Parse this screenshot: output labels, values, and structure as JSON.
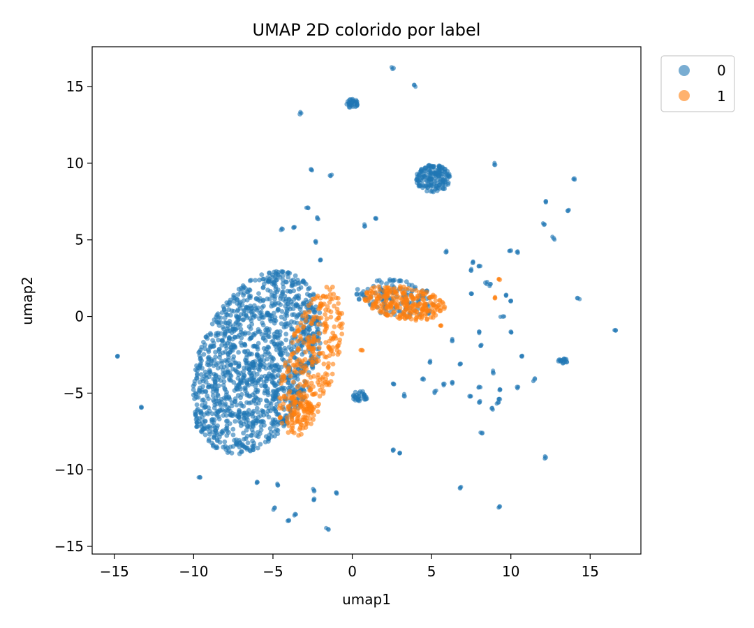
{
  "chart_data": {
    "type": "scatter",
    "title": "UMAP 2D colorido por label",
    "xlabel": "umap1",
    "ylabel": "umap2",
    "xlim": [
      -16.4,
      18.2
    ],
    "ylim": [
      -15.5,
      17.6
    ],
    "xticks": [
      -15,
      -10,
      -5,
      0,
      5,
      10,
      15
    ],
    "yticks": [
      -15,
      -10,
      -5,
      0,
      5,
      10,
      15
    ],
    "xtick_labels": [
      "−15",
      "−10",
      "−5",
      "0",
      "5",
      "10",
      "15"
    ],
    "ytick_labels": [
      "−15",
      "−10",
      "−5",
      "0",
      "5",
      "10",
      "15"
    ],
    "grid": false,
    "legend_position": "outside-top-right",
    "series": [
      {
        "name": "0",
        "color": "#1f77b4",
        "clusters": [
          {
            "center": [
              -6.0,
              -3.0
            ],
            "radius": [
              3.7,
              6.3
            ],
            "rotation": -20,
            "count": 1400
          },
          {
            "center": [
              5.1,
              9.0
            ],
            "radius": [
              1.1,
              0.9
            ],
            "rotation": 0,
            "count": 160
          },
          {
            "center": [
              0.0,
              13.9
            ],
            "radius": [
              0.35,
              0.3
            ],
            "rotation": 0,
            "count": 30
          },
          {
            "center": [
              2.8,
              1.2
            ],
            "radius": [
              2.6,
              1.2
            ],
            "rotation": -10,
            "count": 130
          },
          {
            "center": [
              0.5,
              -5.2
            ],
            "radius": [
              0.5,
              0.4
            ],
            "rotation": 0,
            "count": 30
          },
          {
            "center": [
              13.3,
              -2.9
            ],
            "radius": [
              0.3,
              0.15
            ],
            "rotation": 0,
            "count": 15
          }
        ],
        "points": [
          [
            2.6,
            16.2
          ],
          [
            3.9,
            15.1
          ],
          [
            -3.3,
            13.2
          ],
          [
            -2.6,
            9.6
          ],
          [
            -1.4,
            9.2
          ],
          [
            9.0,
            9.9
          ],
          [
            14.0,
            9.0
          ],
          [
            -2.8,
            7.1
          ],
          [
            12.2,
            7.5
          ],
          [
            13.6,
            6.9
          ],
          [
            1.5,
            6.4
          ],
          [
            -2.2,
            6.4
          ],
          [
            -4.4,
            5.7
          ],
          [
            -3.7,
            5.8
          ],
          [
            0.8,
            5.9
          ],
          [
            12.1,
            6.0
          ],
          [
            12.7,
            5.1
          ],
          [
            -2.3,
            4.9
          ],
          [
            5.9,
            4.2
          ],
          [
            10.0,
            4.3
          ],
          [
            10.4,
            4.2
          ],
          [
            -2.0,
            3.7
          ],
          [
            7.6,
            3.5
          ],
          [
            8.0,
            3.3
          ],
          [
            7.5,
            3.0
          ],
          [
            8.4,
            2.2
          ],
          [
            8.7,
            2.1
          ],
          [
            9.7,
            1.4
          ],
          [
            10.0,
            1.0
          ],
          [
            14.2,
            1.2
          ],
          [
            7.5,
            1.5
          ],
          [
            9.5,
            0.0
          ],
          [
            16.6,
            -0.9
          ],
          [
            8.0,
            -1.0
          ],
          [
            10.0,
            -1.0
          ],
          [
            6.3,
            -1.6
          ],
          [
            8.1,
            -1.9
          ],
          [
            10.7,
            -2.6
          ],
          [
            -14.8,
            -2.6
          ],
          [
            4.9,
            -3.0
          ],
          [
            6.8,
            -3.1
          ],
          [
            8.9,
            -3.7
          ],
          [
            4.5,
            -4.1
          ],
          [
            5.8,
            -4.4
          ],
          [
            6.3,
            -4.3
          ],
          [
            11.5,
            -4.1
          ],
          [
            2.6,
            -4.4
          ],
          [
            -13.3,
            -5.9
          ],
          [
            8.0,
            -4.6
          ],
          [
            10.4,
            -4.6
          ],
          [
            9.3,
            -4.8
          ],
          [
            5.2,
            -4.9
          ],
          [
            7.4,
            -5.2
          ],
          [
            3.3,
            -5.2
          ],
          [
            8.0,
            -5.6
          ],
          [
            9.3,
            -5.4
          ],
          [
            9.2,
            -5.6
          ],
          [
            8.8,
            -6.0
          ],
          [
            -9.8,
            -6.9
          ],
          [
            -9.8,
            -7.2
          ],
          [
            8.2,
            -7.6
          ],
          [
            2.6,
            -8.7
          ],
          [
            3.0,
            -8.9
          ],
          [
            12.2,
            -9.2
          ],
          [
            -9.6,
            -10.5
          ],
          [
            -6.0,
            -10.8
          ],
          [
            -4.7,
            -11.0
          ],
          [
            -2.4,
            -11.4
          ],
          [
            -1.0,
            -11.5
          ],
          [
            6.8,
            -11.2
          ],
          [
            -2.4,
            -11.9
          ],
          [
            -4.9,
            -12.5
          ],
          [
            9.3,
            -12.4
          ],
          [
            -3.6,
            -12.9
          ],
          [
            -4.0,
            -13.3
          ],
          [
            -1.5,
            -13.9
          ]
        ]
      },
      {
        "name": "1",
        "color": "#ff7f0e",
        "clusters": [
          {
            "center": [
              -2.6,
              -3.0
            ],
            "radius": [
              1.6,
              5.2
            ],
            "rotation": -15,
            "count": 320
          },
          {
            "center": [
              3.3,
              0.9
            ],
            "radius": [
              2.6,
              1.1
            ],
            "rotation": -10,
            "count": 260
          },
          {
            "center": [
              -3.3,
              -6.2
            ],
            "radius": [
              0.8,
              1.2
            ],
            "rotation": 0,
            "count": 60
          }
        ],
        "points": [
          [
            9.3,
            2.4
          ],
          [
            9.0,
            1.2
          ],
          [
            5.6,
            -0.6
          ],
          [
            0.6,
            -2.2
          ],
          [
            -1.5,
            -2.0
          ],
          [
            2.2,
            0.6
          ]
        ]
      }
    ]
  }
}
